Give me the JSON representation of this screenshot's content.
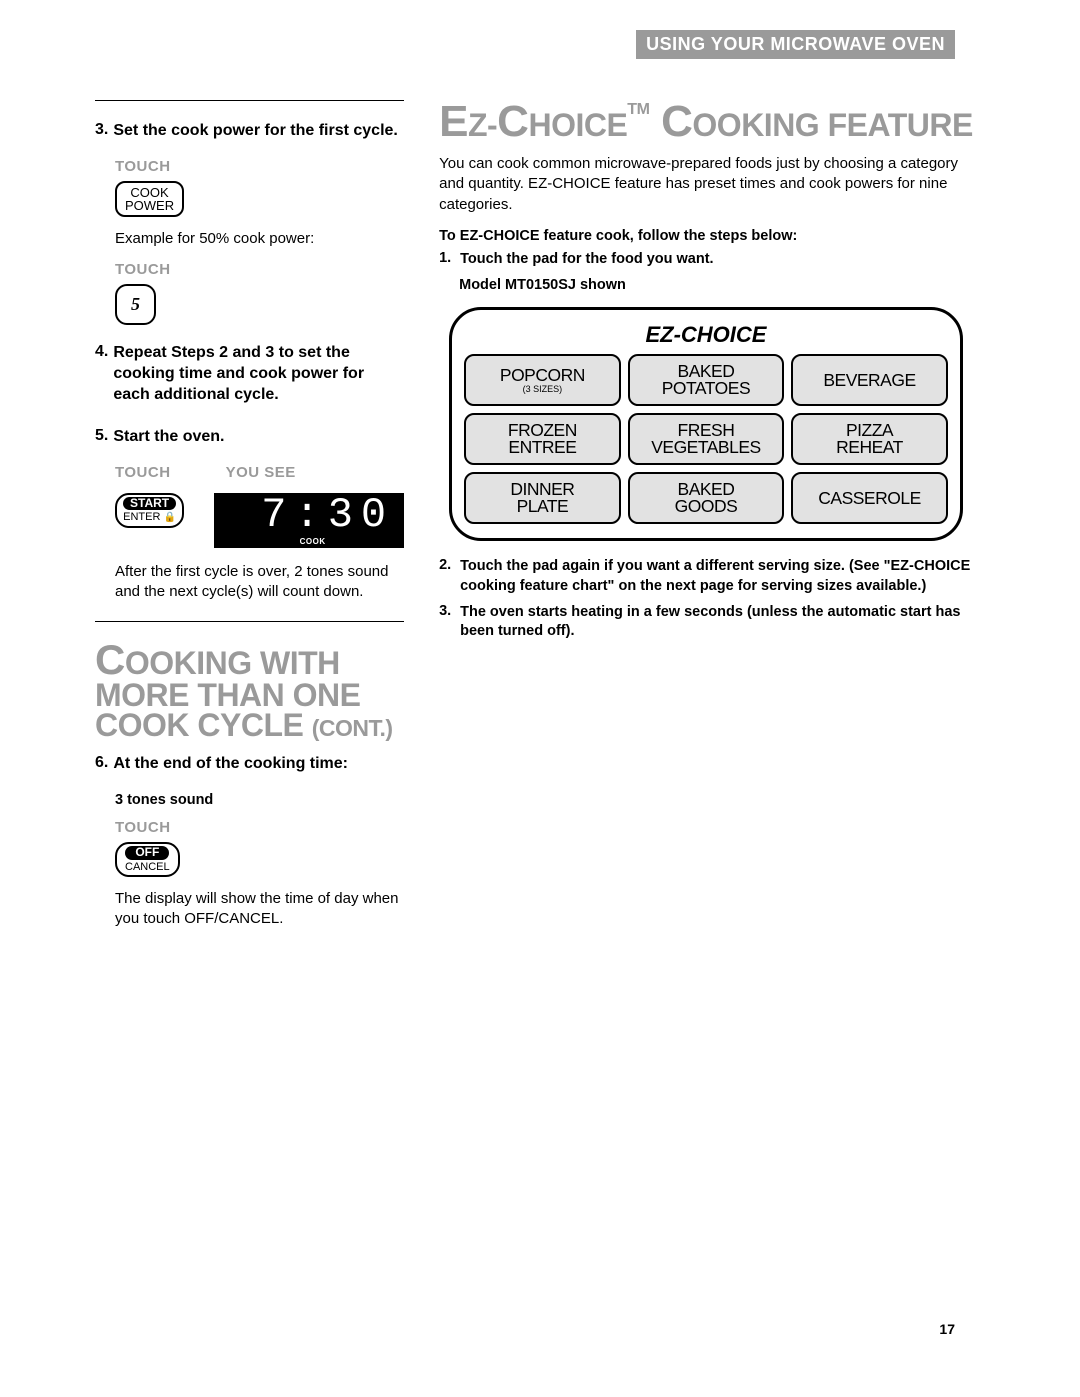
{
  "header": {
    "title": "USING YOUR MICROWAVE OVEN"
  },
  "colors": {
    "gray": "#9a9a9a",
    "btn_fill": "#e2e2e2",
    "display_bg": "#000000",
    "display_fg": "#ffffff"
  },
  "left": {
    "step3": {
      "num": "3.",
      "text": "Set the cook power for the first cycle.",
      "touch_label": "TOUCH",
      "btn_line1": "COOK",
      "btn_line2": "POWER",
      "example": "Example for 50% cook power:",
      "touch_label2": "TOUCH",
      "numpad": "5"
    },
    "step4": {
      "num": "4.",
      "text": "Repeat Steps 2 and 3 to set the cooking time and cook power for each additional cycle."
    },
    "step5": {
      "num": "5.",
      "text": "Start the oven.",
      "touch_label": "TOUCH",
      "yousee_label": "YOU SEE",
      "start_top": "START",
      "start_bottom": "ENTER",
      "display_time": "7:30",
      "display_cook": "COOK",
      "after": "After the first cycle is over, 2 tones sound and the next cycle(s) will count down."
    },
    "section_title": {
      "line1_big": "C",
      "line1_rest": "OOKING WITH MORE THAN ONE",
      "line2_rest1": "COOK CYCLE ",
      "line2_med": "(CONT.)"
    },
    "step6": {
      "num": "6.",
      "text": "At the end of the cooking time:",
      "tones": "3 tones sound",
      "touch_label": "TOUCH",
      "off_top": "OFF",
      "off_bottom": "CANCEL",
      "note": "The display will show the time of day when you touch OFF/CANCEL."
    }
  },
  "right": {
    "title_seg1_big": "E",
    "title_seg1_rest": "Z-",
    "title_seg2_big": "C",
    "title_seg2_rest": "HOICE",
    "title_tm": "TM",
    "title_seg3": " C",
    "title_seg3_rest": "OOKING FEATURE",
    "intro": "You can cook common microwave-prepared foods just by choosing a category and quantity. EZ-CHOICE feature has preset times and cook powers for nine categories.",
    "lead": "To EZ-CHOICE feature cook, follow the steps below:",
    "step1": {
      "n": "1.",
      "t": "Touch the pad for the food you want."
    },
    "model": "Model MT0150SJ shown",
    "panel": {
      "title": "EZ-CHOICE",
      "buttons": [
        {
          "line1": "POPCORN",
          "sub": "(3 SIZES)"
        },
        {
          "line1": "BAKED",
          "line2": "POTATOES"
        },
        {
          "line1": "BEVERAGE"
        },
        {
          "line1": "FROZEN",
          "line2": "ENTREE"
        },
        {
          "line1": "FRESH",
          "line2": "VEGETABLES"
        },
        {
          "line1": "PIZZA",
          "line2": "REHEAT"
        },
        {
          "line1": "DINNER",
          "line2": "PLATE"
        },
        {
          "line1": "BAKED",
          "line2": "GOODS"
        },
        {
          "line1": "CASSEROLE"
        }
      ]
    },
    "step2": {
      "n": "2.",
      "t": "Touch the pad again if you want a different serving size. (See \"EZ-CHOICE cooking feature chart\" on the next page for serving sizes available.)"
    },
    "step3": {
      "n": "3.",
      "t": "The oven starts heating in a few seconds (unless the automatic start has been turned off)."
    }
  },
  "page_number": "17"
}
